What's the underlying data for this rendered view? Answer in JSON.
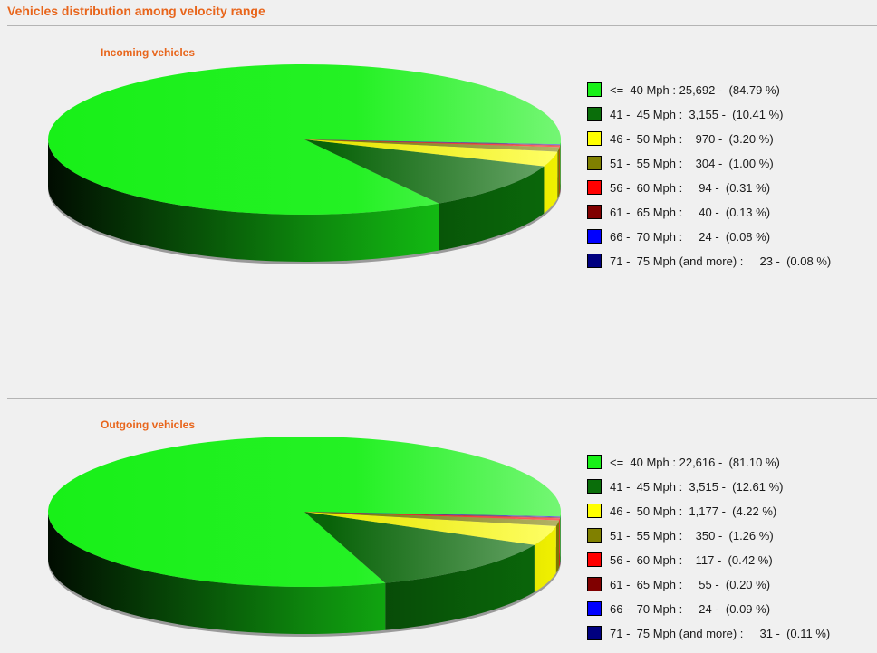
{
  "page": {
    "title": "Vehicles distribution among velocity range"
  },
  "colors": {
    "title": "#e8651b",
    "ranges": [
      "#18f018",
      "#0a6e0a",
      "#ffff00",
      "#808000",
      "#ff0000",
      "#800000",
      "#0000ff",
      "#000080"
    ]
  },
  "chart_data": [
    {
      "type": "pie",
      "title": "Incoming vehicles",
      "style": "3d",
      "categories": [
        "<=  40 Mph",
        "41 -  45 Mph",
        "46 -  50 Mph",
        "51 -  55 Mph",
        "56 -  60 Mph",
        "61 -  65 Mph",
        "66 -  70 Mph",
        "71 -  75 Mph (and more)"
      ],
      "values": [
        25692,
        3155,
        970,
        304,
        94,
        40,
        24,
        23
      ],
      "percents": [
        84.79,
        10.41,
        3.2,
        1.0,
        0.31,
        0.13,
        0.08,
        0.08
      ],
      "legend_labels": [
        "<=  40 Mph : 25,692 -  (84.79 %)",
        "41 -  45 Mph :  3,155 -  (10.41 %)",
        "46 -  50 Mph :    970 -  (3.20 %)",
        "51 -  55 Mph :    304 -  (1.00 %)",
        "56 -  60 Mph :     94 -  (0.31 %)",
        "61 -  65 Mph :     40 -  (0.13 %)",
        "66 -  70 Mph :     24 -  (0.08 %)",
        "71 -  75 Mph (and more) :     23 -  (0.08 %)"
      ],
      "legend_placement": "right"
    },
    {
      "type": "pie",
      "title": "Outgoing vehicles",
      "style": "3d",
      "categories": [
        "<=  40 Mph",
        "41 -  45 Mph",
        "46 -  50 Mph",
        "51 -  55 Mph",
        "56 -  60 Mph",
        "61 -  65 Mph",
        "66 -  70 Mph",
        "71 -  75 Mph (and more)"
      ],
      "values": [
        22616,
        3515,
        1177,
        350,
        117,
        55,
        24,
        31
      ],
      "percents": [
        81.1,
        12.61,
        4.22,
        1.26,
        0.42,
        0.2,
        0.09,
        0.11
      ],
      "legend_labels": [
        "<=  40 Mph : 22,616 -  (81.10 %)",
        "41 -  45 Mph :  3,515 -  (12.61 %)",
        "46 -  50 Mph :  1,177 -  (4.22 %)",
        "51 -  55 Mph :    350 -  (1.26 %)",
        "56 -  60 Mph :    117 -  (0.42 %)",
        "61 -  65 Mph :     55 -  (0.20 %)",
        "66 -  70 Mph :     24 -  (0.09 %)",
        "71 -  75 Mph (and more) :     31 -  (0.11 %)"
      ],
      "legend_placement": "right"
    }
  ]
}
